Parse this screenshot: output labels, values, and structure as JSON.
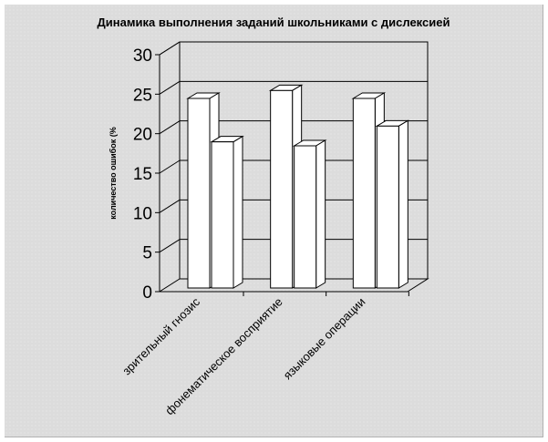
{
  "chart_data": {
    "type": "bar",
    "title": "Динамика выполнения заданий школьниками с дислексией",
    "xlabel": "",
    "ylabel": "количество ошибок (%",
    "ylim": [
      0,
      30
    ],
    "yticks": [
      "0",
      "5",
      "10",
      "15",
      "20",
      "25",
      "30"
    ],
    "categories": [
      "зрительный гнозис",
      "фонематическое восприятие",
      "языковые операции"
    ],
    "series": [
      {
        "values": [
          24,
          25,
          24
        ]
      },
      {
        "values": [
          18.5,
          18,
          20.5
        ]
      }
    ],
    "grid": true,
    "legend": "none",
    "bar_fill": "#ffffff",
    "line_color": "#000000"
  }
}
